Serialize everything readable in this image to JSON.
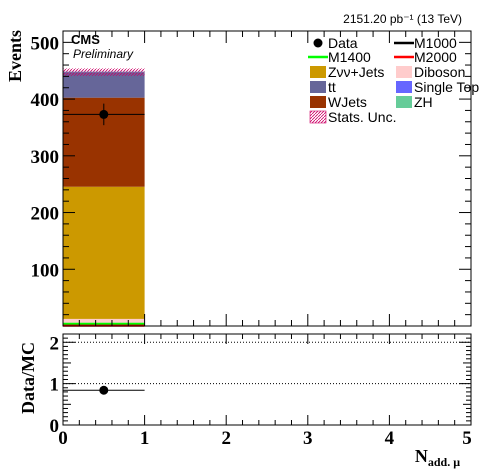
{
  "chart_data": [
    {
      "type": "bar",
      "stacked": true,
      "xlim": [
        0,
        5
      ],
      "ylim": [
        0,
        520
      ],
      "ylabel": "Events",
      "lumi_text": "2151.20 pb⁻¹ (13 TeV)",
      "cms_label": "CMS",
      "preliminary_label": "Preliminary",
      "x_ticks": [
        0,
        1,
        2,
        3,
        4,
        5
      ],
      "x_tick_labels": [
        "0",
        "1",
        "2",
        "3",
        "4",
        "5"
      ],
      "y_ticks": [
        100,
        200,
        300,
        400,
        500
      ],
      "y_tick_labels": [
        "100",
        "200",
        "300",
        "400",
        "500"
      ],
      "bin_edges": [
        0,
        1
      ],
      "stack": [
        {
          "name": "ZH",
          "color": "#66cc99",
          "values": [
            0.5
          ]
        },
        {
          "name": "Single Top",
          "color": "#6666ff",
          "values": [
            1.0
          ]
        },
        {
          "name": "Diboson",
          "color": "#ffcccc",
          "values": [
            11
          ]
        },
        {
          "name": "Zνν+Jets",
          "color": "#cc9900",
          "values": [
            233
          ]
        },
        {
          "name": "WJets",
          "color": "#993300",
          "values": [
            157
          ]
        },
        {
          "name": "tt",
          "color": "#666699",
          "values": [
            45
          ]
        }
      ],
      "stat_unc": {
        "name": "Stats. Unc.",
        "total": [
          447.5
        ],
        "band_low": [
          441
        ],
        "band_high": [
          454
        ]
      },
      "signals": [
        {
          "name": "M1000",
          "color": "#000000",
          "values": [
            1.5
          ]
        },
        {
          "name": "M1400",
          "color": "#00ff00",
          "values": [
            4
          ]
        },
        {
          "name": "M2000",
          "color": "#ff0000",
          "values": [
            0.5
          ]
        }
      ],
      "data": {
        "name": "Data",
        "x": [
          0.5
        ],
        "y": [
          373
        ],
        "yerr": [
          19
        ],
        "xerr": [
          0.5
        ]
      },
      "legend": [
        {
          "name": "Data",
          "style": "marker"
        },
        {
          "name": "M1000",
          "style": "line",
          "color": "#000000"
        },
        {
          "name": "M1400",
          "style": "line",
          "color": "#00ff00"
        },
        {
          "name": "M2000",
          "style": "line",
          "color": "#ff0000"
        },
        {
          "name": "Zνν+Jets",
          "style": "box",
          "color": "#cc9900"
        },
        {
          "name": "Diboson",
          "style": "box",
          "color": "#ffcccc"
        },
        {
          "name": "tt",
          "style": "box",
          "color": "#666699"
        },
        {
          "name": "Single Top",
          "style": "box",
          "color": "#6666ff"
        },
        {
          "name": "WJets",
          "style": "box",
          "color": "#993300"
        },
        {
          "name": "ZH",
          "style": "box",
          "color": "#66cc99"
        },
        {
          "name": "Stats. Unc.",
          "style": "hatch",
          "color": "#cc0066"
        }
      ]
    },
    {
      "type": "scatter",
      "xlim": [
        0,
        5
      ],
      "ylim": [
        0,
        2.2
      ],
      "ylabel": "Data/MC",
      "xlabel": "N",
      "xlabel_sub": "add. μ",
      "x_ticks": [
        0,
        1,
        2,
        3,
        4,
        5
      ],
      "x_tick_labels": [
        "0",
        "1",
        "2",
        "3",
        "4",
        "5"
      ],
      "y_ticks": [
        0,
        1,
        2
      ],
      "y_tick_labels": [
        "0",
        "1",
        "2"
      ],
      "dashed_lines": [
        1,
        2
      ],
      "points": {
        "x": [
          0.5
        ],
        "y": [
          0.84
        ],
        "yerr": [
          0.05
        ],
        "xerr": [
          0.5
        ]
      }
    }
  ]
}
